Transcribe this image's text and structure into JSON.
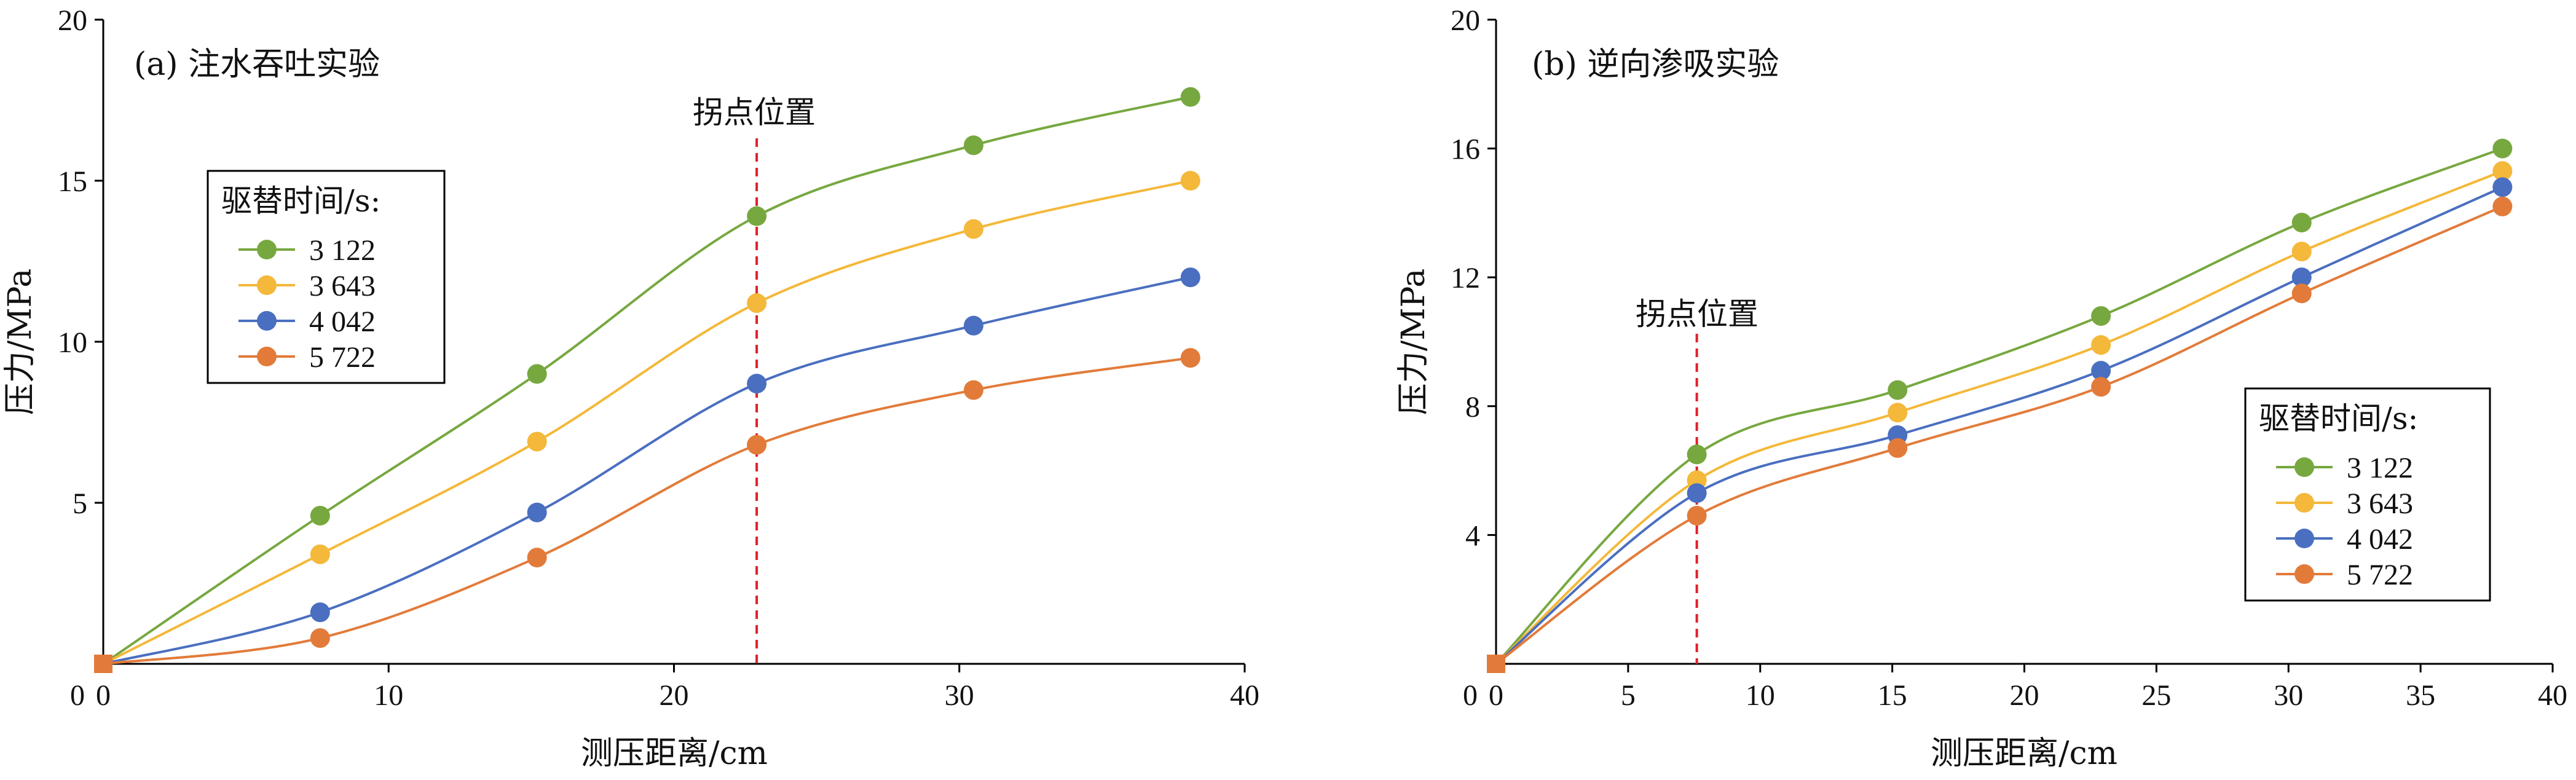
{
  "series_colors": {
    "3 122": "#77a840",
    "3 643": "#f4b83a",
    "4 042": "#4a6fc0",
    "5 722": "#e27b3a"
  },
  "chart_data": [
    {
      "type": "line",
      "title": "(a) 注水吞吐实验",
      "xlabel": "测压距离/cm",
      "ylabel": "压力/MPa",
      "xlim": [
        0,
        40
      ],
      "ylim": [
        0,
        20
      ],
      "xticks": [
        0,
        10,
        20,
        30,
        40
      ],
      "yticks": [
        5,
        10,
        15,
        20
      ],
      "ytick_labels_extra": [],
      "origin_y_label": "0",
      "legend": {
        "title": "驱替时间/s:",
        "placement": "upper-left"
      },
      "annotation": {
        "text": "拐点位置",
        "x": 22.9
      },
      "series": [
        {
          "name": "3 122",
          "x": [
            0,
            7.6,
            15.2,
            22.9,
            30.5,
            38.1
          ],
          "y": [
            0,
            4.6,
            9.0,
            13.9,
            16.1,
            17.6
          ]
        },
        {
          "name": "3 643",
          "x": [
            0,
            7.6,
            15.2,
            22.9,
            30.5,
            38.1
          ],
          "y": [
            0,
            3.4,
            6.9,
            11.2,
            13.5,
            15.0
          ]
        },
        {
          "name": "4 042",
          "x": [
            0,
            7.6,
            15.2,
            22.9,
            30.5,
            38.1
          ],
          "y": [
            0,
            1.6,
            4.7,
            8.7,
            10.5,
            12.0
          ]
        },
        {
          "name": "5 722",
          "x": [
            0,
            7.6,
            15.2,
            22.9,
            30.5,
            38.1
          ],
          "y": [
            0,
            0.8,
            3.3,
            6.8,
            8.5,
            9.5
          ]
        }
      ]
    },
    {
      "type": "line",
      "title": "(b) 逆向渗吸实验",
      "xlabel": "测压距离/cm",
      "ylabel": "压力/MPa",
      "xlim": [
        0,
        40
      ],
      "ylim": [
        0,
        20
      ],
      "xticks": [
        0,
        5,
        10,
        15,
        20,
        25,
        30,
        35,
        40
      ],
      "yticks": [
        4,
        8,
        12,
        16,
        20
      ],
      "origin_y_label": "0",
      "legend": {
        "title": "驱替时间/s:",
        "placement": "lower-right"
      },
      "annotation": {
        "text": "拐点位置",
        "x": 7.6
      },
      "series": [
        {
          "name": "3 122",
          "x": [
            0,
            7.6,
            15.2,
            22.9,
            30.5,
            38.1
          ],
          "y": [
            0,
            6.5,
            8.5,
            10.8,
            13.7,
            16.0
          ]
        },
        {
          "name": "3 643",
          "x": [
            0,
            7.6,
            15.2,
            22.9,
            30.5,
            38.1
          ],
          "y": [
            0,
            5.7,
            7.8,
            9.9,
            12.8,
            15.3
          ]
        },
        {
          "name": "4 042",
          "x": [
            0,
            7.6,
            15.2,
            22.9,
            30.5,
            38.1
          ],
          "y": [
            0,
            5.3,
            7.1,
            9.1,
            12.0,
            14.8
          ]
        },
        {
          "name": "5 722",
          "x": [
            0,
            7.6,
            15.2,
            22.9,
            30.5,
            38.1
          ],
          "y": [
            0,
            4.6,
            6.7,
            8.6,
            11.5,
            14.2
          ]
        }
      ]
    }
  ]
}
